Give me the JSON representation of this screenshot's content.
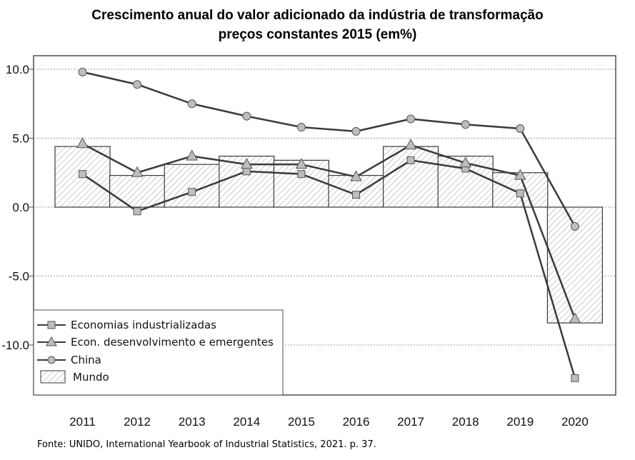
{
  "title_line1": "Crescimento anual do valor adicionado da indústria de transformação",
  "title_line2": "preços constantes 2015 (em%)",
  "source": "Fonte: UNIDO, International Yearbook of Industrial Statistics, 2021. p. 37.",
  "chart_data": {
    "type": "bar",
    "title": "Crescimento anual do valor adicionado da indústria de transformação preços constantes 2015 (em%)",
    "categories": [
      "2011",
      "2012",
      "2013",
      "2014",
      "2015",
      "2016",
      "2017",
      "2018",
      "2019",
      "2020"
    ],
    "ylim": [
      -13.5,
      11.5
    ],
    "yticks": [
      10.0,
      5.0,
      0.0,
      -5.0,
      -10.0
    ],
    "ytick_labels": [
      "10.0",
      "5.0",
      "0.0",
      "-5.0",
      "-10.0"
    ],
    "grid": "horizontal dotted",
    "legend_position": "bottom-left",
    "series": [
      {
        "name": "Mundo",
        "kind": "bar",
        "values": [
          4.4,
          2.3,
          3.1,
          3.7,
          3.4,
          2.3,
          4.4,
          3.7,
          2.5,
          -8.4
        ]
      },
      {
        "name": "Economias industrializadas",
        "kind": "line",
        "marker": "square",
        "values": [
          2.4,
          -0.3,
          1.1,
          2.6,
          2.4,
          0.9,
          3.4,
          2.8,
          1.0,
          -12.4
        ]
      },
      {
        "name": "Econ. desenvolvimento e emergentes",
        "kind": "line",
        "marker": "triangle",
        "values": [
          4.6,
          2.5,
          3.7,
          3.1,
          3.1,
          2.2,
          4.5,
          3.2,
          2.3,
          -8.1
        ]
      },
      {
        "name": "China",
        "kind": "line",
        "marker": "circle",
        "values": [
          9.8,
          8.9,
          7.5,
          6.6,
          5.8,
          5.5,
          6.4,
          6.0,
          5.7,
          -1.4
        ]
      }
    ],
    "colors": {
      "line": "#3a3a3a",
      "marker_fill": "#bdbdbd",
      "hatch": "#9a9a9a",
      "grid": "#9e9e9e"
    }
  }
}
